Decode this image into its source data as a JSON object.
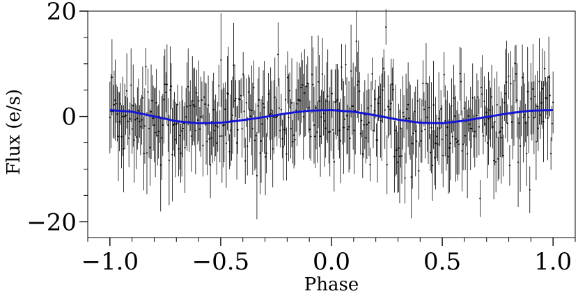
{
  "chart_data": {
    "type": "scatter",
    "xlabel": "Phase",
    "ylabel": "Flux (e/s)",
    "xlim": [
      -1.1,
      1.1
    ],
    "ylim": [
      -23,
      20
    ],
    "xticks": [
      -1.0,
      -0.5,
      0.0,
      0.5,
      1.0
    ],
    "xtick_labels": [
      "−1.0",
      "−0.5",
      "0.0",
      "0.5",
      "1.0"
    ],
    "yticks": [
      -20,
      0,
      20
    ],
    "ytick_labels": [
      "−20",
      "0",
      "20"
    ],
    "grid": false,
    "legend": false,
    "series": [
      {
        "kind": "errorbar",
        "color": "#000000",
        "x_range": [
          -1.0,
          1.0
        ],
        "n_points": 420,
        "y_center": 0.0,
        "y_scatter_sd": 4.5,
        "error_halfwidth_range": [
          3,
          9
        ]
      },
      {
        "kind": "model-line",
        "color": "#1515d6",
        "x": [
          -1.0,
          -0.9,
          -0.8,
          -0.7,
          -0.6,
          -0.5,
          -0.4,
          -0.3,
          -0.2,
          -0.1,
          0.0,
          0.1,
          0.2,
          0.3,
          0.4,
          0.5,
          0.6,
          0.7,
          0.8,
          0.9,
          1.0
        ],
        "y": [
          1.2,
          0.9,
          0.0,
          -0.9,
          -1.3,
          -1.2,
          -0.7,
          -0.1,
          0.6,
          1.1,
          1.2,
          0.9,
          0.2,
          -0.6,
          -1.2,
          -1.3,
          -0.8,
          -0.1,
          0.6,
          1.1,
          1.2
        ]
      }
    ]
  }
}
